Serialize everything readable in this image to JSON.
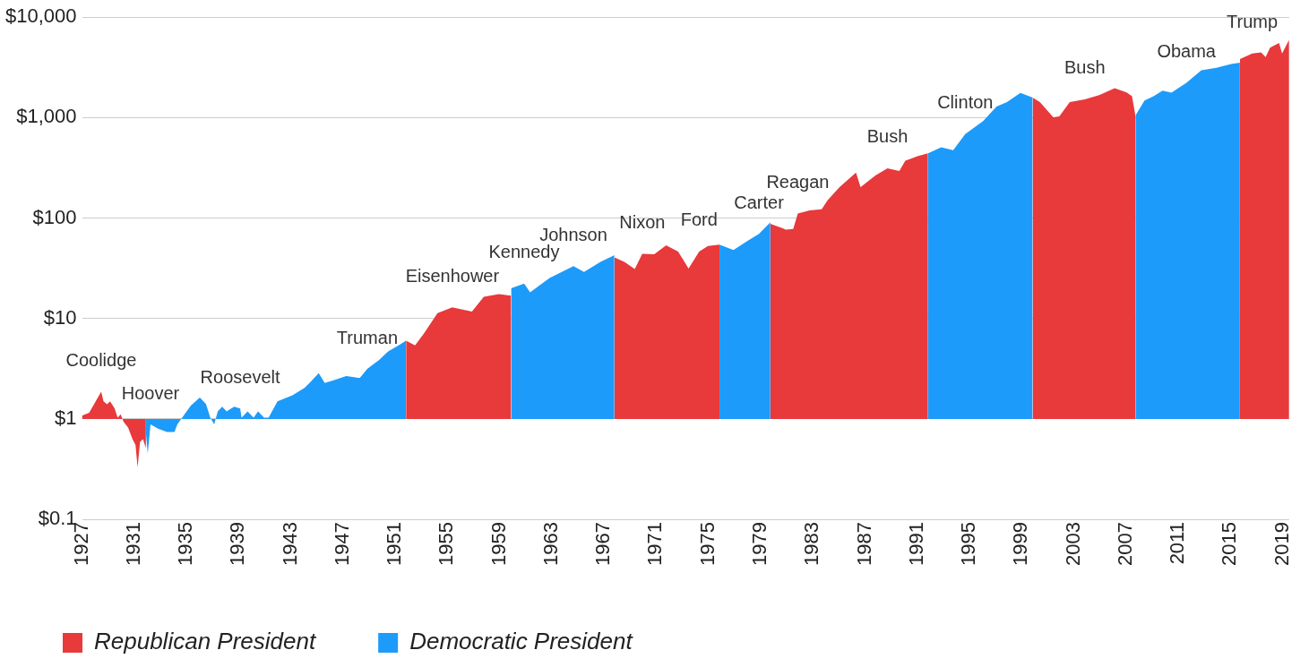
{
  "chart_data": {
    "type": "area",
    "log": "y",
    "grid": "y",
    "legend": "bottom left",
    "xlim": [
      1927,
      2019.5
    ],
    "xticks": [
      1927,
      1931,
      1935,
      1939,
      1943,
      1947,
      1951,
      1955,
      1959,
      1963,
      1967,
      1971,
      1975,
      1979,
      1983,
      1987,
      1991,
      1995,
      1999,
      2003,
      2007,
      2011,
      2015,
      2019
    ],
    "ylim": [
      0.1,
      10000
    ],
    "yticks": [
      {
        "value": 0.1,
        "label": "$0.1"
      },
      {
        "value": 1,
        "label": "$1"
      },
      {
        "value": 10,
        "label": "$10"
      },
      {
        "value": 100,
        "label": "$100"
      },
      {
        "value": 1000,
        "label": "$1,000"
      },
      {
        "value": 10000,
        "label": "$10,000"
      }
    ],
    "series": [
      {
        "name": "Republican President",
        "color": "#e8393b",
        "x": [
          1927,
          1927.55,
          1928.0,
          1928.47,
          1928.65,
          1928.92,
          1929.15,
          1929.5,
          1929.73,
          1929.96,
          1930.18,
          1930.53,
          1930.87,
          1931.1,
          1931.26,
          1931.45,
          1931.67,
          1931.9,
          1940,
          1951.83,
          1952.52,
          1953.2,
          1954.24,
          1955.38,
          1956.88,
          1957.79,
          1958.94,
          1959.88,
          1964,
          1967.8,
          1968.56,
          1969.36,
          1969.93,
          1970.85,
          1971.76,
          1972.68,
          1973.48,
          1974.29,
          1974.97,
          1975.85,
          1978,
          1979.75,
          1980.7,
          1980.93,
          1981.5,
          1981.85,
          1982.76,
          1983.68,
          1984.13,
          1985.05,
          1986.31,
          1986.66,
          1987.8,
          1988.72,
          1989.63,
          1990.09,
          1991.01,
          1991.83,
          1995,
          1999.85,
          2000.4,
          2001.43,
          2001.89,
          2002.69,
          2003.84,
          2004.99,
          2006.13,
          2007.05,
          2007.46,
          2007.72,
          2011.5,
          2015.73,
          2016.67,
          2017.35,
          2017.7,
          2018.04,
          2018.73,
          2018.96,
          2019.5
        ],
        "values": [
          1.08,
          1.15,
          1.46,
          1.87,
          1.5,
          1.4,
          1.5,
          1.27,
          1.03,
          1.11,
          0.94,
          0.82,
          0.63,
          0.55,
          0.33,
          0.59,
          0.63,
          0.51,
          null,
          6.0,
          5.4,
          7.1,
          11.3,
          12.9,
          11.7,
          16.4,
          17.5,
          16.9,
          null,
          40.5,
          36.7,
          31.0,
          44.0,
          43.5,
          53.5,
          46.4,
          31.4,
          46.4,
          52.8,
          54.3,
          null,
          87.6,
          79.1,
          76.8,
          78,
          111,
          119,
          122,
          150,
          203,
          284,
          203,
          266,
          313,
          294,
          373,
          412,
          441,
          null,
          1580,
          1430,
          1010,
          1030,
          1430,
          1520,
          1680,
          1960,
          1780,
          1630,
          1050,
          null,
          3820,
          4350,
          4470,
          4000,
          4980,
          5550,
          4350,
          5960
        ]
      },
      {
        "name": "Democratic President",
        "color": "#1c9bfb",
        "x": [
          1931.9,
          1931.9,
          1932.04,
          1932.25,
          1932.82,
          1933.51,
          1934.08,
          1934.31,
          1934.77,
          1935.34,
          1936.03,
          1936.5,
          1936.83,
          1937.13,
          1937.4,
          1937.74,
          1938.09,
          1938.66,
          1939.12,
          1939.23,
          1939.69,
          1940.15,
          1940.49,
          1940.95,
          1941.3,
          1941.98,
          1943.13,
          1944.05,
          1944.5,
          1945.14,
          1945.6,
          1946.33,
          1947.25,
          1948.28,
          1948.86,
          1949.77,
          1950.46,
          1951.26,
          1951.83,
          1956,
          1959.88,
          1960.88,
          1961.34,
          1962.83,
          1964.66,
          1965.47,
          1966.73,
          1967.8,
          1972,
          1975.85,
          1976.92,
          1977.95,
          1978.87,
          1979.75,
          1986,
          1991.83,
          1992.84,
          1993.76,
          1994.68,
          1996.05,
          1997.08,
          1997.88,
          1998.91,
          1999.85,
          2004,
          2007.72,
          2008.42,
          2009.11,
          2009.8,
          2010.48,
          2011.63,
          2012.77,
          2013.92,
          2015.06,
          2015.73
        ],
        "values": [
          1,
          0.72,
          0.45,
          0.88,
          0.8,
          0.74,
          0.74,
          0.88,
          1.07,
          1.36,
          1.63,
          1.41,
          1.03,
          0.88,
          1.19,
          1.32,
          1.19,
          1.32,
          1.27,
          1.03,
          1.19,
          1.03,
          1.19,
          1.03,
          1.03,
          1.5,
          1.72,
          2.04,
          2.33,
          2.85,
          2.28,
          2.44,
          2.67,
          2.55,
          3.15,
          3.86,
          4.7,
          5.4,
          6.0,
          null,
          20.0,
          22.2,
          18.2,
          25.3,
          33.2,
          29.0,
          36.7,
          42.7,
          null,
          54.3,
          48.0,
          58.6,
          69.5,
          91,
          null,
          441,
          506,
          473,
          685,
          925,
          1290,
          1430,
          1760,
          1580,
          null,
          1050,
          1480,
          1630,
          1860,
          1770,
          2220,
          2960,
          3140,
          3410,
          3520
        ]
      }
    ],
    "annotations": [
      {
        "text": "Coolidge",
        "x": 1928.47,
        "y": 1.87
      },
      {
        "text": "Hoover",
        "x": 1932.25,
        "y": 0.88
      },
      {
        "text": "Roosevelt",
        "x": 1939.12,
        "y": 1.27
      },
      {
        "text": "Truman",
        "x": 1948.86,
        "y": 3.15
      },
      {
        "text": "Eisenhower",
        "x": 1955.38,
        "y": 12.9
      },
      {
        "text": "Kennedy",
        "x": 1960.88,
        "y": 22.2
      },
      {
        "text": "Johnson",
        "x": 1964.66,
        "y": 33.2
      },
      {
        "text": "Nixon",
        "x": 1969.93,
        "y": 44.0
      },
      {
        "text": "Ford",
        "x": 1974.29,
        "y": 46.4
      },
      {
        "text": "Carter",
        "x": 1978.87,
        "y": 69.5
      },
      {
        "text": "Reagan",
        "x": 1981.85,
        "y": 111
      },
      {
        "text": "Bush",
        "x": 1988.72,
        "y": 313
      },
      {
        "text": "Clinton",
        "x": 1994.68,
        "y": 685
      },
      {
        "text": "Bush",
        "x": 2003.84,
        "y": 1520
      },
      {
        "text": "Obama",
        "x": 2011.63,
        "y": 2220
      },
      {
        "text": "Trump",
        "x": 2016.67,
        "y": 4350
      }
    ]
  }
}
